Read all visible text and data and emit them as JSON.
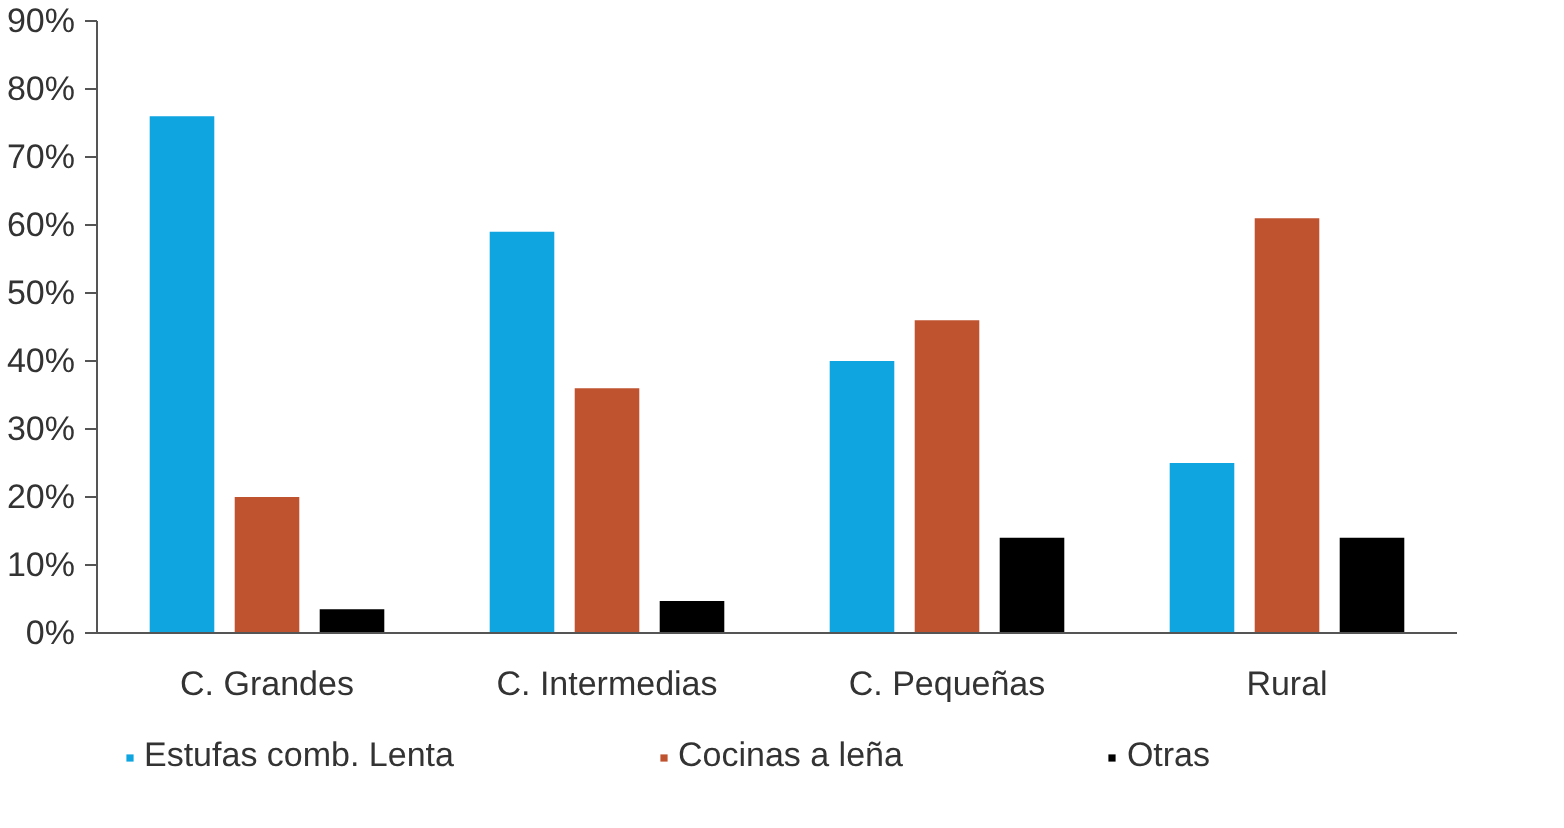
{
  "chart_data": {
    "type": "bar",
    "categories": [
      "C. Grandes",
      "C. Intermedias",
      "C. Pequeñas",
      "Rural"
    ],
    "series": [
      {
        "name": "Estufas comb. Lenta",
        "color": "#0ea5e0",
        "values": [
          76,
          59,
          40,
          25
        ]
      },
      {
        "name": "Cocinas a leña",
        "color": "#c0532f",
        "values": [
          20,
          36,
          46,
          61
        ]
      },
      {
        "name": "Otras",
        "color": "#000000",
        "values": [
          3.5,
          4.7,
          14,
          14
        ]
      }
    ],
    "ylim": [
      0,
      90
    ],
    "yticks": [
      {
        "value": 0,
        "label": "0%"
      },
      {
        "value": 10,
        "label": "10%"
      },
      {
        "value": 20,
        "label": "20%"
      },
      {
        "value": 30,
        "label": "30%"
      },
      {
        "value": 40,
        "label": "40%"
      },
      {
        "value": 50,
        "label": "50%"
      },
      {
        "value": 60,
        "label": "60%"
      },
      {
        "value": 70,
        "label": "70%"
      },
      {
        "value": 80,
        "label": "80%"
      },
      {
        "value": 90,
        "label": "90%"
      }
    ],
    "grid": false,
    "legend": "bottom"
  }
}
